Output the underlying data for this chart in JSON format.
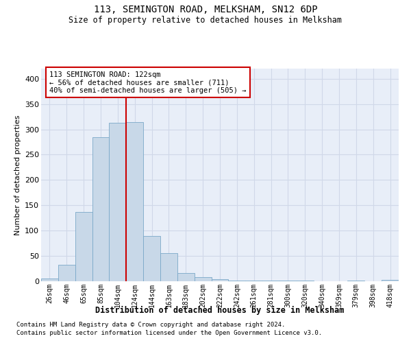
{
  "title": "113, SEMINGTON ROAD, MELKSHAM, SN12 6DP",
  "subtitle": "Size of property relative to detached houses in Melksham",
  "xlabel": "Distribution of detached houses by size in Melksham",
  "ylabel": "Number of detached properties",
  "categories": [
    "26sqm",
    "46sqm",
    "65sqm",
    "85sqm",
    "104sqm",
    "124sqm",
    "144sqm",
    "163sqm",
    "183sqm",
    "202sqm",
    "222sqm",
    "242sqm",
    "261sqm",
    "281sqm",
    "300sqm",
    "320sqm",
    "340sqm",
    "359sqm",
    "379sqm",
    "398sqm",
    "418sqm"
  ],
  "values": [
    5,
    33,
    137,
    284,
    313,
    315,
    90,
    55,
    16,
    8,
    4,
    2,
    1,
    2,
    1,
    1,
    0,
    0,
    1,
    0,
    3
  ],
  "bar_color": "#c8d8e8",
  "bar_edge_color": "#7aa8c8",
  "grid_color": "#d0d8e8",
  "background_color": "#e8eef8",
  "vline_color": "#cc0000",
  "annotation_text": "113 SEMINGTON ROAD: 122sqm\n← 56% of detached houses are smaller (711)\n40% of semi-detached houses are larger (505) →",
  "annotation_box_color": "#ffffff",
  "annotation_box_edge": "#cc0000",
  "ylim": [
    0,
    420
  ],
  "yticks": [
    0,
    50,
    100,
    150,
    200,
    250,
    300,
    350,
    400
  ],
  "footer1": "Contains HM Land Registry data © Crown copyright and database right 2024.",
  "footer2": "Contains public sector information licensed under the Open Government Licence v3.0."
}
